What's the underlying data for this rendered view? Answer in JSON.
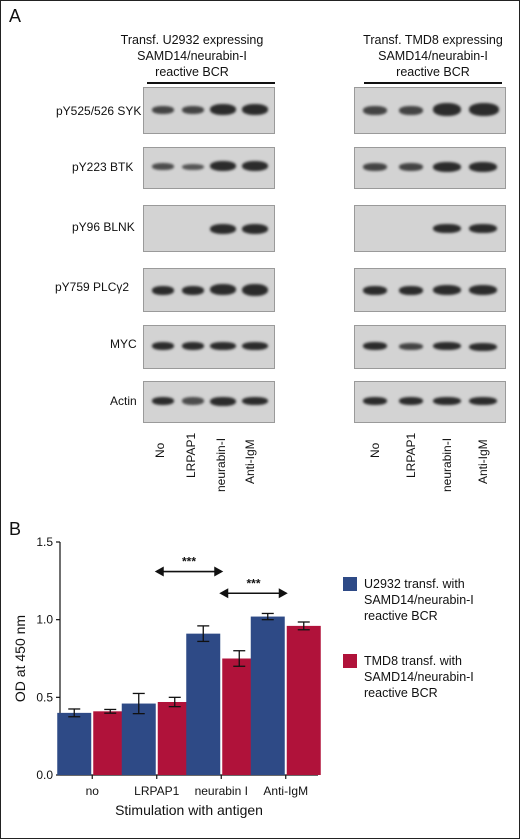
{
  "panel_a": {
    "label": "A",
    "left_header": [
      "Transf. U2932 expressing",
      "SAMD14/neurabin-I",
      "reactive BCR"
    ],
    "right_header": [
      "Transf. TMD8 expressing",
      "SAMD14/neurabin-I",
      "reactive BCR"
    ],
    "rows": [
      "pY525/526 SYK",
      "pY223 BTK",
      "pY96 BLNK",
      "pY759 PLCγ2",
      "MYC",
      "Actin"
    ],
    "lanes": [
      "No",
      "LRPAP1",
      "neurabin-I",
      "Anti-IgM"
    ]
  },
  "panel_b": {
    "label": "B"
  },
  "chart_data": {
    "type": "bar",
    "categories": [
      "no",
      "LRPAP1",
      "neurabin I",
      "Anti-IgM"
    ],
    "series": [
      {
        "name": "U2932 transf. with SAMD14/neurabin-I reactive BCR",
        "legend_lines": [
          "U2932 transf. with",
          "SAMD14/neurabin-I",
          "reactive BCR"
        ],
        "values": [
          0.4,
          0.46,
          0.91,
          1.02
        ],
        "errors": [
          0.025,
          0.065,
          0.05,
          0.02
        ],
        "color": "#2e4a86"
      },
      {
        "name": "TMD8 transf. with SAMD14/neurabin-I reactive BCR",
        "legend_lines": [
          "TMD8 transf. with",
          "SAMD14/neurabin-I",
          "reactive BCR"
        ],
        "values": [
          0.41,
          0.47,
          0.75,
          0.96
        ],
        "errors": [
          0.012,
          0.03,
          0.05,
          0.025
        ],
        "color": "#b0123a"
      }
    ],
    "ylabel": "OD at 450 nm",
    "xlabel": "Stimulation with antigen",
    "ylim": [
      0,
      1.5
    ],
    "yticks": [
      "0.0",
      "0.5",
      "1.0",
      "1.5"
    ],
    "annotations": [
      {
        "text": "***",
        "from": "LRPAP1",
        "to": "neurabin I",
        "level": 1.31
      },
      {
        "text": "***",
        "from": "neurabin I",
        "to": "Anti-IgM",
        "level": 1.17
      }
    ]
  }
}
